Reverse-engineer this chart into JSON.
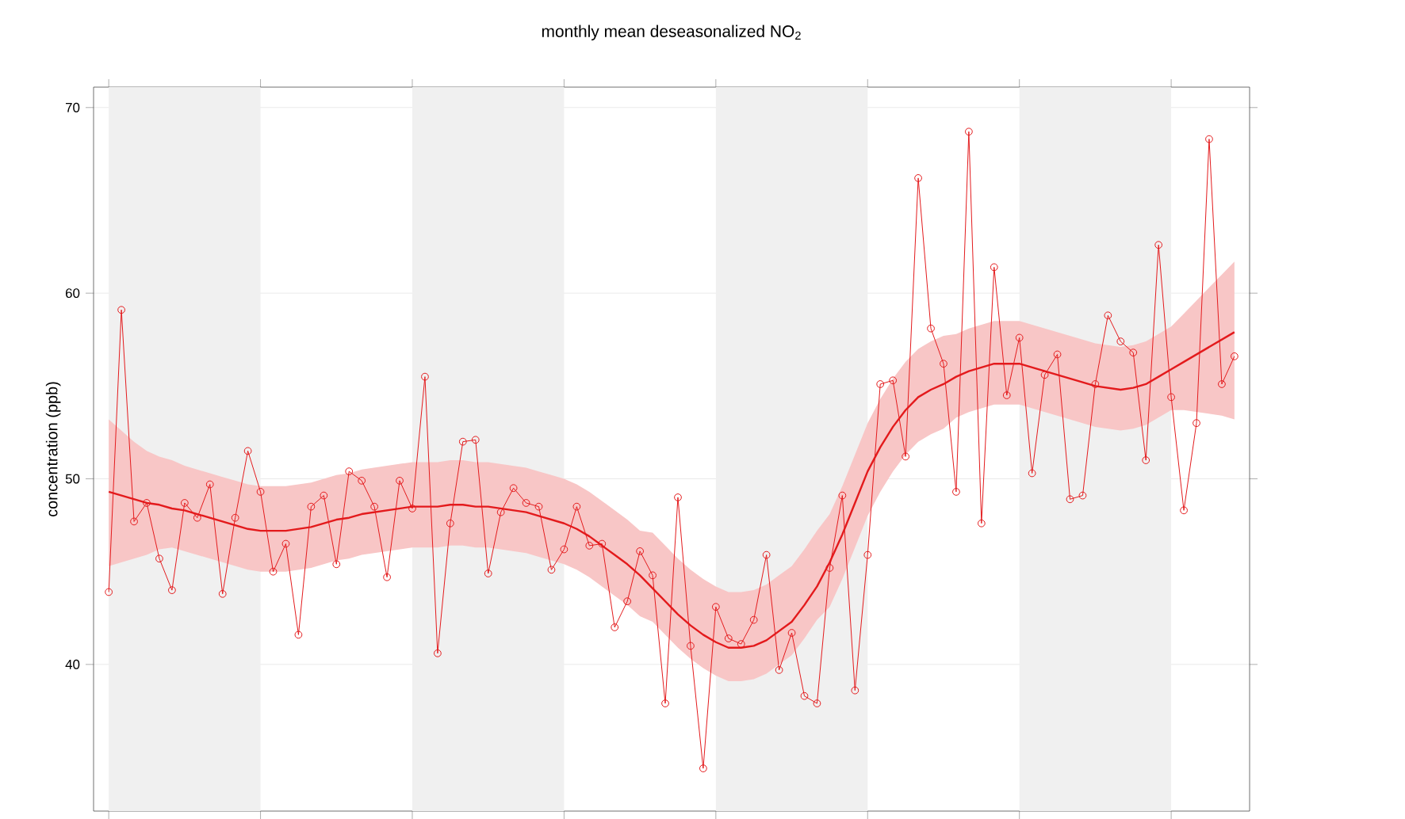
{
  "chart_data": {
    "type": "line",
    "title": "monthly mean deseasonalized NO$_{2}$",
    "ylabel": "concentration (ppb)",
    "categories": [
      null,
      null,
      null,
      null,
      null,
      null,
      null,
      null,
      null,
      null,
      null,
      null,
      null,
      null,
      null,
      null,
      null,
      null,
      null,
      null,
      null,
      null,
      null,
      null,
      null,
      null,
      null,
      null,
      null,
      null,
      null,
      null,
      null,
      null,
      null,
      null,
      null,
      null,
      null,
      null,
      null,
      null,
      null,
      null,
      null,
      null,
      null,
      null,
      null,
      null,
      null,
      null,
      null,
      null,
      null,
      null,
      null,
      null,
      null,
      null,
      null,
      null,
      null,
      null,
      null,
      null,
      null,
      null,
      null,
      null,
      null,
      null,
      null,
      null,
      null,
      null,
      null,
      null,
      null,
      null,
      null,
      null,
      null,
      null,
      null,
      null,
      null,
      null,
      null,
      null
    ],
    "ylim": [
      32.1,
      71.1
    ],
    "yticks": [
      40,
      50,
      60,
      70
    ],
    "grid": "y",
    "series": [
      {
        "type": "line",
        "color": "#e31a1c",
        "marker": "circle",
        "values": [
          43.9,
          59.1,
          47.7,
          48.7,
          45.7,
          44.0,
          48.7,
          47.9,
          49.7,
          43.8,
          47.9,
          51.5,
          49.3,
          45.0,
          46.5,
          41.6,
          48.5,
          49.1,
          45.4,
          50.4,
          49.9,
          48.5,
          44.7,
          49.9,
          48.4,
          55.5,
          40.6,
          47.6,
          52.0,
          52.1,
          44.9,
          48.2,
          49.5,
          48.7,
          48.5,
          45.1,
          46.2,
          48.5,
          46.4,
          46.5,
          42.0,
          43.4,
          46.1,
          44.8,
          37.9,
          49.0,
          41.0,
          34.4,
          43.1,
          41.4,
          41.1,
          42.4,
          45.9,
          39.7,
          41.7,
          38.3,
          37.9,
          45.2,
          49.1,
          38.6,
          45.9,
          55.1,
          55.3,
          51.2,
          66.2,
          58.1,
          56.2,
          49.3,
          68.7,
          47.6,
          61.4,
          54.5,
          57.6,
          50.3,
          55.6,
          56.7,
          48.9,
          49.1,
          55.1,
          58.8,
          57.4,
          56.8,
          51.0,
          62.6,
          54.4,
          48.3,
          53.0,
          68.3,
          55.1,
          56.6
        ]
      },
      {
        "type": "line",
        "color": "#e31a1c",
        "marker": "none",
        "values": [
          49.3,
          49.1,
          48.9,
          48.7,
          48.6,
          48.4,
          48.3,
          48.1,
          47.9,
          47.7,
          47.5,
          47.3,
          47.2,
          47.2,
          47.2,
          47.3,
          47.4,
          47.6,
          47.8,
          47.9,
          48.1,
          48.2,
          48.3,
          48.4,
          48.5,
          48.5,
          48.5,
          48.6,
          48.6,
          48.5,
          48.5,
          48.4,
          48.3,
          48.2,
          48.0,
          47.8,
          47.6,
          47.3,
          46.9,
          46.4,
          45.9,
          45.4,
          44.8,
          44.1,
          43.4,
          42.7,
          42.1,
          41.6,
          41.2,
          40.9,
          40.9,
          41.0,
          41.3,
          41.8,
          42.3,
          43.2,
          44.2,
          45.5,
          47.0,
          48.7,
          50.4,
          51.7,
          52.8,
          53.7,
          54.4,
          54.8,
          55.1,
          55.5,
          55.8,
          56.0,
          56.2,
          56.2,
          56.2,
          56.0,
          55.8,
          55.6,
          55.4,
          55.2,
          55.0,
          54.9,
          54.8,
          54.9,
          55.1,
          55.5,
          55.9,
          56.3,
          56.7,
          57.1,
          57.5,
          57.9
        ],
        "lower": [
          45.3,
          45.5,
          45.7,
          45.9,
          46.2,
          46.3,
          46.1,
          45.9,
          45.7,
          45.5,
          45.3,
          45.1,
          45.0,
          45.0,
          45.0,
          45.1,
          45.2,
          45.4,
          45.6,
          45.7,
          45.9,
          46.0,
          46.1,
          46.2,
          46.3,
          46.3,
          46.3,
          46.4,
          46.4,
          46.3,
          46.3,
          46.2,
          46.1,
          46.0,
          45.8,
          45.6,
          45.4,
          45.1,
          44.7,
          44.2,
          43.7,
          43.2,
          42.6,
          42.3,
          41.6,
          40.9,
          40.3,
          39.8,
          39.4,
          39.1,
          39.1,
          39.2,
          39.5,
          40.0,
          40.5,
          41.4,
          42.4,
          43.1,
          44.6,
          46.3,
          48.0,
          49.3,
          50.4,
          51.3,
          52.0,
          52.4,
          52.7,
          53.3,
          53.6,
          53.8,
          54.0,
          54.0,
          54.0,
          53.8,
          53.6,
          53.4,
          53.2,
          53.0,
          52.8,
          52.7,
          52.6,
          52.7,
          52.9,
          53.3,
          53.7,
          53.7,
          53.6,
          53.5,
          53.4,
          53.2
        ],
        "upper": [
          53.2,
          52.6,
          52.0,
          51.5,
          51.2,
          51.0,
          50.7,
          50.5,
          50.3,
          50.1,
          49.9,
          49.7,
          49.6,
          49.6,
          49.6,
          49.7,
          49.8,
          50.0,
          50.2,
          50.3,
          50.5,
          50.6,
          50.7,
          50.8,
          50.9,
          50.9,
          50.9,
          51.0,
          51.0,
          50.9,
          50.9,
          50.8,
          50.7,
          50.6,
          50.4,
          50.2,
          50.0,
          49.7,
          49.3,
          48.8,
          48.3,
          47.8,
          47.2,
          47.1,
          46.4,
          45.7,
          45.1,
          44.6,
          44.2,
          43.9,
          43.9,
          44.0,
          44.3,
          44.8,
          45.3,
          46.2,
          47.2,
          48.1,
          49.6,
          51.3,
          53.0,
          54.3,
          55.4,
          56.3,
          57.0,
          57.4,
          57.7,
          57.8,
          58.1,
          58.3,
          58.5,
          58.5,
          58.5,
          58.3,
          58.1,
          57.9,
          57.7,
          57.5,
          57.3,
          57.2,
          57.1,
          57.2,
          57.4,
          57.8,
          58.2,
          58.9,
          59.6,
          60.3,
          61.0,
          61.7
        ]
      }
    ]
  }
}
